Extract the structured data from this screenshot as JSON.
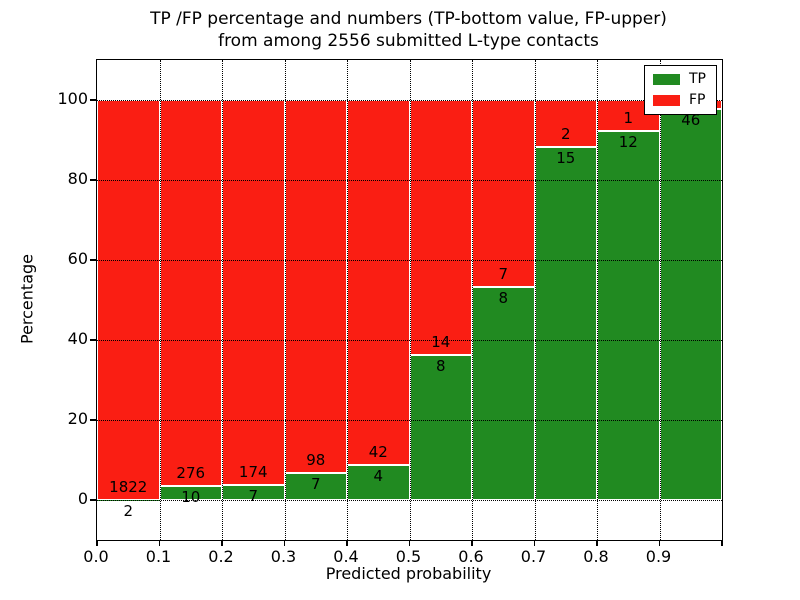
{
  "figure": {
    "title_line1": "TP /FP percentage and numbers (TP-bottom value, FP-upper)",
    "title_line2": "from among 2556 submitted L-type contacts"
  },
  "chart_data": {
    "type": "bar",
    "stacked": true,
    "normalized_to_percent": true,
    "title": "TP /FP percentage and numbers (TP-bottom value, FP-upper)\nfrom among 2556 submitted L-type contacts",
    "xlabel": "Predicted probability",
    "ylabel": "Percentage",
    "total_submitted_contacts": 2556,
    "bin_edges": [
      0.0,
      0.1,
      0.2,
      0.3,
      0.4,
      0.5,
      0.6,
      0.7,
      0.8,
      0.9,
      1.0
    ],
    "series": [
      {
        "name": "TP",
        "color": "#218a21",
        "counts": [
          2,
          10,
          7,
          7,
          4,
          8,
          8,
          15,
          12,
          46
        ]
      },
      {
        "name": "FP",
        "color": "#fa1e13",
        "counts": [
          1822,
          276,
          174,
          98,
          42,
          14,
          7,
          2,
          1,
          1
        ]
      }
    ],
    "tp_percent_of_bin": [
      0.11,
      3.5,
      3.87,
      6.67,
      8.7,
      36.36,
      53.33,
      88.24,
      92.31,
      97.87
    ],
    "fp_label_visible": [
      true,
      true,
      true,
      true,
      true,
      true,
      true,
      true,
      true,
      false
    ],
    "xlim": [
      0.0,
      1.0
    ],
    "ylim": [
      -10,
      110
    ],
    "xtick_labels": [
      "0.0",
      "0.1",
      "0.2",
      "0.3",
      "0.4",
      "0.5",
      "0.6",
      "0.7",
      "0.8",
      "0.9"
    ],
    "ytick_labels": [
      "0",
      "20",
      "40",
      "60",
      "80",
      "100"
    ],
    "ytick_values": [
      0,
      20,
      40,
      60,
      80,
      100
    ],
    "grid": true,
    "grid_style": "dotted",
    "bar_edge_color": "#ffffff",
    "legend": {
      "position": "upper right",
      "entries": [
        {
          "label": "TP",
          "color": "#218a21"
        },
        {
          "label": "FP",
          "color": "#fa1e13"
        }
      ]
    }
  }
}
